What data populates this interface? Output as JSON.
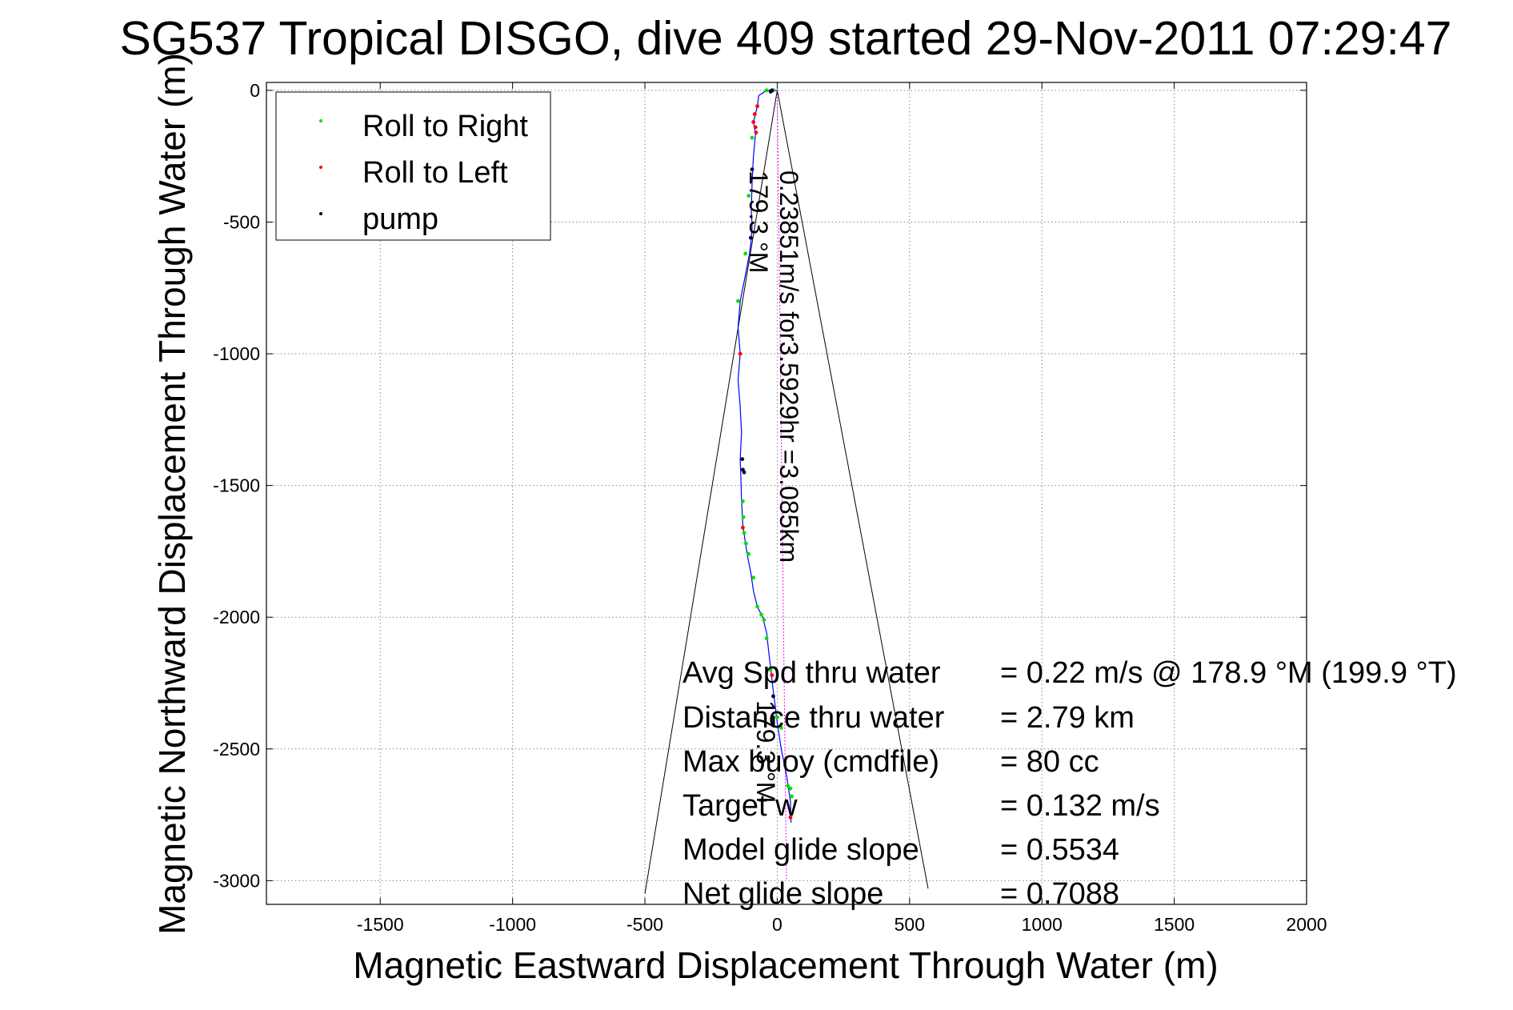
{
  "chart_data": {
    "type": "scatter",
    "title": "SG537 Tropical DISGO, dive 409 started 29-Nov-2011 07:29:47",
    "xlabel": "Magnetic Eastward Displacement Through Water (m)",
    "ylabel": "Magnetic Northward Displacement Through Water (m)",
    "xlim": [
      -1930,
      2000
    ],
    "ylim": [
      -3090,
      30
    ],
    "xticks": [
      -1500,
      -1000,
      -500,
      0,
      500,
      1000,
      1500,
      2000
    ],
    "yticks": [
      0,
      -500,
      -1000,
      -1500,
      -2000,
      -2500,
      -3000
    ],
    "grid": true,
    "legend_position": "top-left",
    "legend": [
      "Roll to Right",
      "Roll to Left",
      "pump"
    ],
    "colors": {
      "track": "#0000ff",
      "roll_right": "#00e000",
      "roll_left": "#ff0000",
      "pump": "#000033",
      "heading_line": "#ff00ff",
      "cone": "#000000",
      "grid": "#888888"
    },
    "track": {
      "x": [
        0,
        -20,
        -40,
        -70,
        -75,
        -90,
        -82,
        -90,
        -95,
        -98,
        -95,
        -100,
        -105,
        -120,
        -140,
        -148,
        -140,
        -148,
        -140,
        -135,
        -140,
        -138,
        -135,
        -130,
        -120,
        -110,
        -100,
        -90,
        -75,
        -55,
        -40,
        -30,
        -15,
        0,
        15,
        35,
        50,
        52
      ],
      "y": [
        0,
        0,
        0,
        -20,
        -60,
        -120,
        -165,
        -250,
        -350,
        -450,
        -520,
        -580,
        -620,
        -700,
        -800,
        -900,
        -1000,
        -1100,
        -1200,
        -1300,
        -1400,
        -1450,
        -1550,
        -1650,
        -1720,
        -1780,
        -1830,
        -1900,
        -1960,
        -2000,
        -2060,
        -2150,
        -2280,
        -2400,
        -2500,
        -2600,
        -2700,
        -2780
      ]
    },
    "series": [
      {
        "name": "Roll to Right",
        "x": [
          -20,
          -40,
          -15,
          -95,
          -108,
          -120,
          -148,
          -130,
          -128,
          -125,
          -118,
          -108,
          -90,
          -75,
          -60,
          -50,
          -40,
          -25,
          0,
          15,
          40,
          50,
          55
        ],
        "y": [
          0,
          0,
          0,
          -180,
          -400,
          -620,
          -800,
          -1560,
          -1620,
          -1680,
          -1720,
          -1760,
          -1850,
          -1960,
          -1990,
          -2010,
          -2080,
          -2200,
          -2380,
          -2420,
          -2640,
          -2650,
          -2680
        ]
      },
      {
        "name": "Roll to Left",
        "x": [
          -75,
          -85,
          -90,
          -82,
          -80,
          -140,
          -130,
          -20,
          50
        ],
        "y": [
          -60,
          -90,
          -120,
          -140,
          -160,
          -1000,
          -1660,
          -2220,
          -2760
        ]
      },
      {
        "name": "pump",
        "x": [
          -20,
          -25,
          -95,
          -100,
          -132,
          -130,
          -125,
          -15
        ],
        "y": [
          0,
          -5,
          -300,
          -560,
          -1400,
          -1440,
          -1450,
          -2300
        ]
      }
    ],
    "heading_line": {
      "x": [
        0,
        35
      ],
      "y": [
        0,
        -3000
      ]
    },
    "cone": {
      "left": {
        "x": [
          0,
          -500
        ],
        "y": [
          0,
          -3050
        ]
      },
      "right": {
        "x": [
          0,
          570
        ],
        "y": [
          0,
          -3030
        ]
      }
    },
    "annotations": {
      "heading_label": "179.3 °M",
      "speed_label": "0.23851m/s for3.5929hr =3.085km",
      "heading_label_2": "179.3 °M"
    },
    "stats": [
      {
        "label": "Avg Spd thru water",
        "value": "=  0.22 m/s @ 178.9 °M (199.9 °T)"
      },
      {
        "label": "Distance thru water",
        "value": "=  2.79 km"
      },
      {
        "label": "Max buoy (cmdfile)",
        "value": "= 80 cc"
      },
      {
        "label": "Target w",
        "value": "= 0.132 m/s"
      },
      {
        "label": "Model glide slope",
        "value": "= 0.5534"
      },
      {
        "label": "Net glide slope",
        "value": "= 0.7088"
      }
    ]
  }
}
